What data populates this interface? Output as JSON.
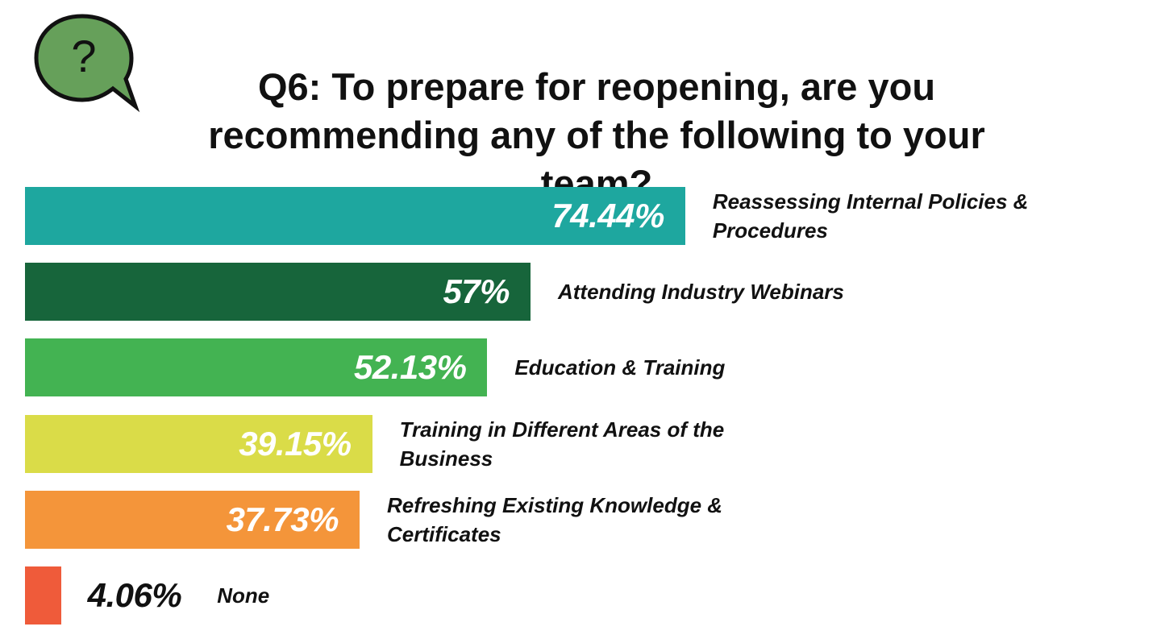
{
  "chart_data": {
    "type": "bar",
    "orientation": "horizontal",
    "icon": "?",
    "title": "Q6: To prepare for reopening, are you recommending any of the following to your team?",
    "categories": [
      "Reassessing Internal Policies & Procedures",
      "Attending Industry Webinars",
      "Education & Training",
      "Training in Different Areas of the Business",
      "Refreshing Existing Knowledge & Certificates",
      "None"
    ],
    "values": [
      74.44,
      57,
      52.13,
      39.15,
      37.73,
      4.06
    ],
    "value_labels": [
      "74.44%",
      "57%",
      "52.13%",
      "39.15%",
      "37.73%",
      "4.06%"
    ],
    "colors": [
      "#1ea79f",
      "#17653b",
      "#43b352",
      "#dadc48",
      "#f4953a",
      "#ef5b3a"
    ]
  }
}
